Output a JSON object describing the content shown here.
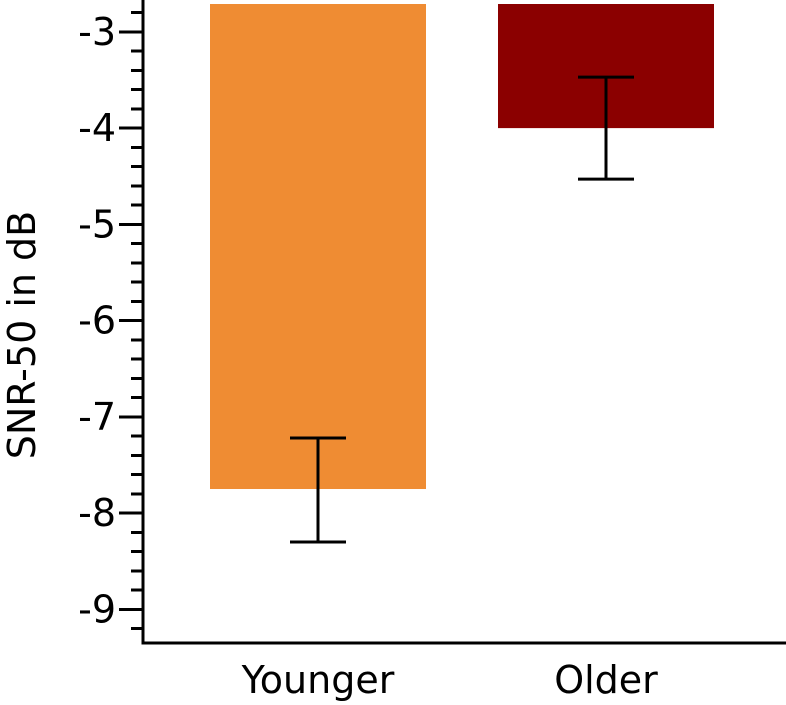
{
  "chart_data": {
    "type": "bar",
    "title": "",
    "xlabel": "",
    "ylabel": "SNR-50 in dB",
    "categories": [
      "Younger",
      "Older"
    ],
    "values": [
      -7.75,
      -4.0
    ],
    "error_low": [
      -8.3,
      -4.53
    ],
    "error_high": [
      -7.22,
      -3.47
    ],
    "bar_colors": [
      "#EF8C33",
      "#8B0000"
    ],
    "ylim": [
      -9.35,
      -2.7
    ],
    "yticks": [
      -3,
      -4,
      -5,
      -6,
      -7,
      -8,
      -9
    ],
    "ytick_labels": [
      "-3",
      "-4",
      "-5",
      "-6",
      "-7",
      "-8",
      "-9"
    ],
    "minor_tick_step": 0.2,
    "grid": false,
    "legend": "none"
  }
}
